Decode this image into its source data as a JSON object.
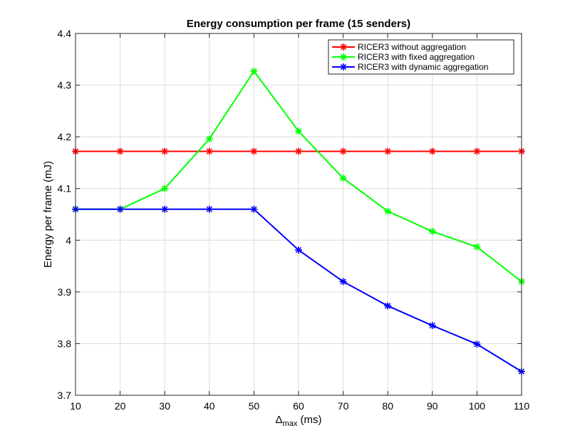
{
  "chart_data": {
    "type": "line",
    "title": "Energy consumption per frame (15 senders)",
    "xlabel_main": "Δ",
    "xlabel_sub": "max",
    "xlabel_unit": " (ms)",
    "ylabel": "Energy per frame (mJ)",
    "x": [
      10,
      20,
      30,
      40,
      50,
      60,
      70,
      80,
      90,
      100,
      110
    ],
    "xlim": [
      10,
      110
    ],
    "ylim": [
      3.7,
      4.4
    ],
    "xticks": [
      "10",
      "20",
      "30",
      "40",
      "50",
      "60",
      "70",
      "80",
      "90",
      "100",
      "110"
    ],
    "yticks": [
      "3.7",
      "3.8",
      "3.9",
      "4",
      "4.1",
      "4.2",
      "4.3",
      "4.4"
    ],
    "ytick_values": [
      3.7,
      3.8,
      3.9,
      4.0,
      4.1,
      4.2,
      4.3,
      4.4
    ],
    "grid": true,
    "legend_position": "top-right",
    "series": [
      {
        "name": "RICER3 without aggregation",
        "color": "#ff0000",
        "marker": "asterisk",
        "values": [
          4.172,
          4.172,
          4.172,
          4.172,
          4.172,
          4.172,
          4.172,
          4.172,
          4.172,
          4.172,
          4.172
        ]
      },
      {
        "name": "RICER3 with fixed aggregation",
        "color": "#00ff00",
        "marker": "asterisk",
        "values": [
          4.06,
          4.06,
          4.1,
          4.196,
          4.327,
          4.211,
          4.12,
          4.056,
          4.017,
          3.987,
          3.92
        ]
      },
      {
        "name": "RICER3 with dynamic aggregation",
        "color": "#0000ff",
        "marker": "asterisk",
        "values": [
          4.06,
          4.06,
          4.06,
          4.06,
          4.06,
          3.981,
          3.92,
          3.873,
          3.835,
          3.799,
          3.746
        ]
      }
    ]
  }
}
